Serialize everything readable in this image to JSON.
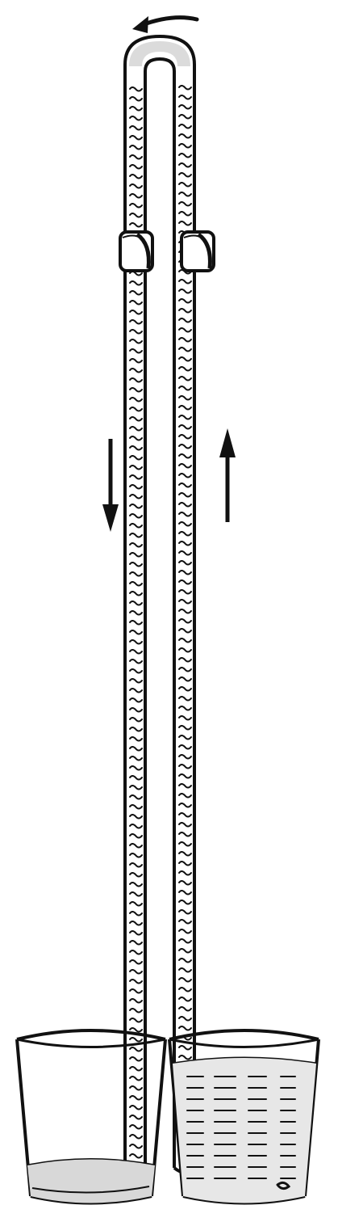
{
  "figure": {
    "subject": "siphon",
    "colors": {
      "ink": "#111111",
      "paper": "#ffffff"
    },
    "flow_direction": {
      "top_arrow": "left",
      "left_arrow": "down",
      "right_arrow": "up"
    },
    "vessels": [
      {
        "id": "left-glass",
        "water_level": "low"
      },
      {
        "id": "right-glass",
        "water_level": "high"
      }
    ]
  }
}
